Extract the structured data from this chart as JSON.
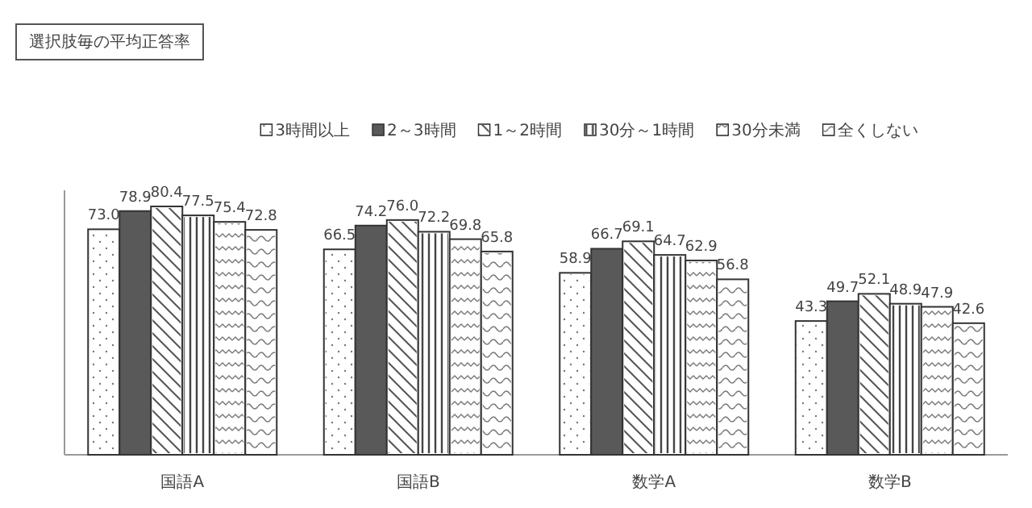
{
  "chart_data": {
    "type": "bar",
    "title": "選択肢毎の平均正答率",
    "categories": [
      "国語A",
      "国語B",
      "数学A",
      "数学B"
    ],
    "series": [
      {
        "name": "3時間以上",
        "color": "#ffffff",
        "values": [
          73.0,
          66.5,
          58.9,
          43.3
        ],
        "value_labels": [
          "73.0",
          "66.5",
          "58.9",
          "43.3"
        ]
      },
      {
        "name": "2～3時間",
        "color": "#595959",
        "values": [
          78.9,
          74.2,
          66.7,
          49.7
        ],
        "value_labels": [
          "78.9",
          "74.2",
          "66.7",
          "49.7"
        ]
      },
      {
        "name": "1～2時間",
        "color": "#ffffff",
        "values": [
          80.4,
          76.0,
          69.1,
          52.1
        ],
        "value_labels": [
          "80.4",
          "76.0",
          "69.1",
          "52.1"
        ]
      },
      {
        "name": "30分～1時間",
        "color": "#ffffff",
        "values": [
          77.5,
          72.2,
          64.7,
          48.9
        ],
        "value_labels": [
          "77.5",
          "72.2",
          "64.7",
          "48.9"
        ]
      },
      {
        "name": "30分未満",
        "color": "#ffffff",
        "values": [
          75.4,
          69.8,
          62.9,
          47.9
        ],
        "value_labels": [
          "75.4",
          "69.8",
          "62.9",
          "47.9"
        ]
      },
      {
        "name": "全くしない",
        "color": "#ffffff",
        "values": [
          72.8,
          65.8,
          56.8,
          42.6
        ],
        "value_labels": [
          "72.8",
          "65.8",
          "56.8",
          "42.6"
        ]
      }
    ],
    "legend": "top"
  }
}
